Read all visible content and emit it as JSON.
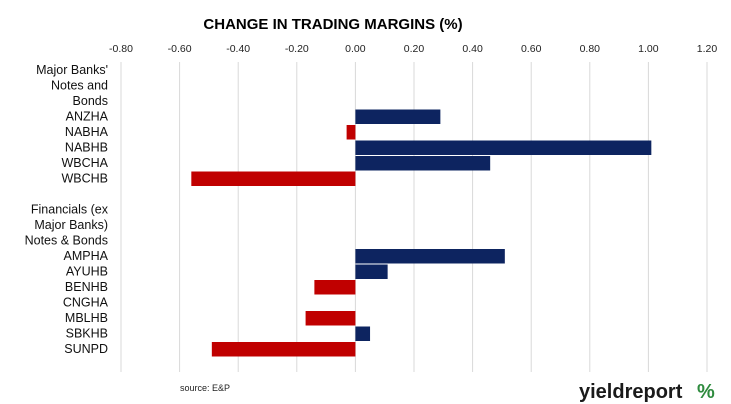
{
  "chart_data": {
    "type": "bar",
    "orientation": "horizontal",
    "title": "CHANGE IN TRADING MARGINS (%)",
    "xlim": [
      -0.8,
      1.2
    ],
    "xticks": [
      "-0.80",
      "-0.60",
      "-0.40",
      "-0.20",
      "0.00",
      "0.20",
      "0.40",
      "0.60",
      "0.80",
      "1.00",
      "1.20"
    ],
    "grid": true,
    "colors": {
      "positive": "#0d2460",
      "negative": "#c00000"
    },
    "groups": [
      {
        "label_lines": [
          "Major Banks'",
          "Notes and",
          "Bonds"
        ],
        "categories": [
          "ANZHA",
          "NABHA",
          "NABHB",
          "WBCHA",
          "WBCHB"
        ],
        "values": [
          0.29,
          -0.03,
          1.01,
          0.46,
          -0.56
        ]
      },
      {
        "label_lines": [
          "Financials (ex",
          "Major Banks)",
          "Notes & Bonds"
        ],
        "categories": [
          "AMPHA",
          "AYUHB",
          "BENHB",
          "CNGHA",
          "MBLHB",
          "SBKHB",
          "SUNPD"
        ],
        "values": [
          0.51,
          0.11,
          -0.14,
          0.0,
          -0.17,
          0.05,
          -0.49
        ]
      }
    ]
  },
  "footer": {
    "source": "source: E&P",
    "logo_text": "yieldreport",
    "logo_symbol": "%"
  }
}
